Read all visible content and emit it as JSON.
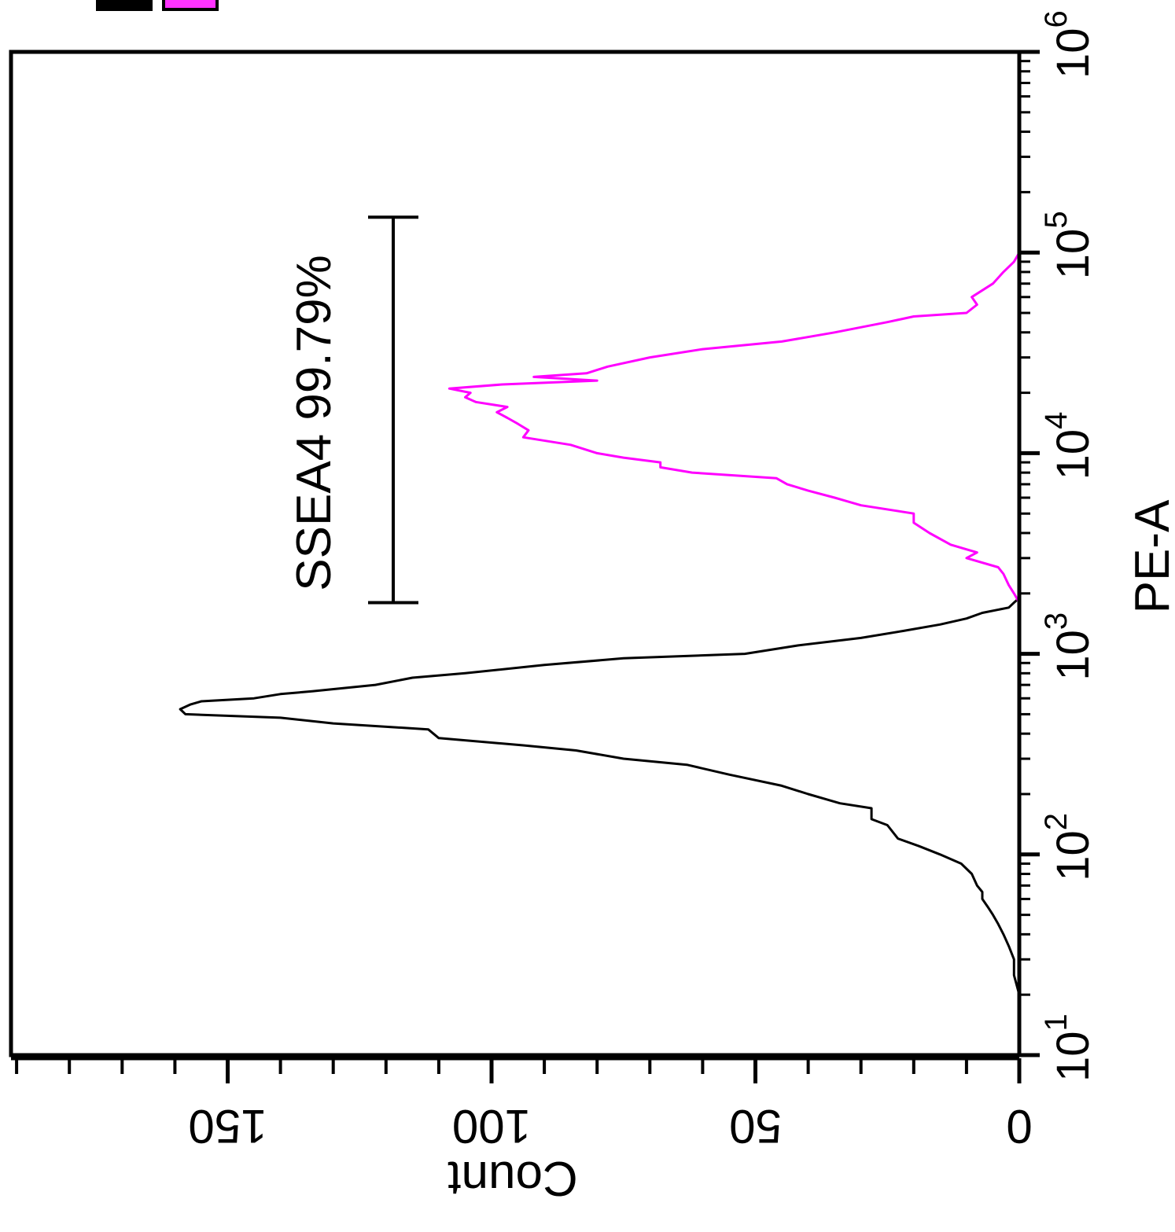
{
  "chart_data": {
    "type": "line",
    "orientation": "rotated-90",
    "legend_colors": [
      "#000000",
      "#ff00ff"
    ],
    "x_axis": {
      "label": "PE-A",
      "scale": "log",
      "range": [
        10,
        1000000
      ],
      "ticks": [
        {
          "value": 10,
          "base": "10",
          "exp": "1"
        },
        {
          "value": 100,
          "base": "10",
          "exp": "2"
        },
        {
          "value": 1000,
          "base": "10",
          "exp": "3"
        },
        {
          "value": 10000,
          "base": "10",
          "exp": "4"
        },
        {
          "value": 100000,
          "base": "10",
          "exp": "5"
        },
        {
          "value": 1000000,
          "base": "10",
          "exp": "6"
        }
      ]
    },
    "y_axis": {
      "label": "Count",
      "range": [
        0,
        190
      ],
      "ticks": [
        {
          "value": 0,
          "label": "0"
        },
        {
          "value": 50,
          "label": "50"
        },
        {
          "value": 100,
          "label": "100"
        },
        {
          "value": 150,
          "label": "150"
        }
      ]
    },
    "gate": {
      "label": "SSEA4 99.79%",
      "range": [
        1800,
        150000
      ]
    },
    "series": [
      {
        "color": "#000000",
        "x": [
          20,
          25,
          30,
          35,
          40,
          45,
          50,
          55,
          60,
          65,
          70,
          80,
          90,
          100,
          110,
          120,
          140,
          150,
          170,
          180,
          200,
          220,
          250,
          280,
          300,
          330,
          350,
          380,
          420,
          450,
          480,
          500,
          530,
          560,
          580,
          600,
          630,
          650,
          700,
          760,
          800,
          880,
          950,
          1000,
          1100,
          1200,
          1300,
          1400,
          1500,
          1600,
          1700,
          1800,
          1900,
          2000
        ],
        "y": [
          0,
          1,
          1,
          2,
          3,
          4,
          5,
          6,
          7,
          7,
          8,
          9,
          11,
          15,
          19,
          23,
          25,
          28,
          28,
          34,
          40,
          45,
          55,
          63,
          75,
          84,
          94,
          110,
          112,
          130,
          140,
          158,
          159,
          157,
          155,
          145,
          140,
          134,
          122,
          115,
          105,
          90,
          75,
          52,
          42,
          30,
          22,
          15,
          10,
          7,
          2,
          1,
          0,
          0
        ]
      },
      {
        "color": "#ff00ff",
        "x": [
          1800,
          2000,
          2200,
          2500,
          2700,
          3000,
          3200,
          3500,
          4000,
          4500,
          5000,
          5500,
          6000,
          6500,
          7000,
          7500,
          8000,
          8500,
          9000,
          9500,
          10000,
          11000,
          12000,
          13000,
          14000,
          15000,
          16000,
          17000,
          18000,
          19000,
          20000,
          21000,
          22000,
          23000,
          24000,
          25000,
          27000,
          30000,
          33000,
          36000,
          40000,
          45000,
          48000,
          50000,
          55000,
          60000,
          70000,
          80000,
          90000,
          100000
        ],
        "y": [
          0,
          1,
          2,
          3,
          4,
          10,
          8,
          13,
          17,
          20,
          20,
          30,
          35,
          40,
          44,
          46,
          62,
          68,
          68,
          75,
          80,
          85,
          94,
          93,
          95,
          97,
          99,
          97,
          103,
          105,
          104,
          108,
          98,
          80,
          92,
          82,
          78,
          70,
          60,
          45,
          35,
          25,
          20,
          10,
          8,
          9,
          5,
          3,
          1,
          0
        ]
      }
    ]
  }
}
